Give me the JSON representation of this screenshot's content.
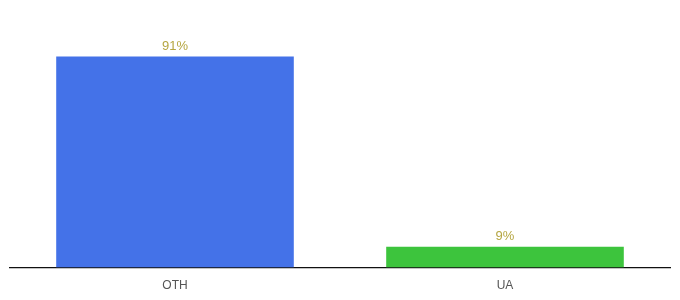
{
  "chart_data": {
    "type": "bar",
    "categories": [
      "OTH",
      "UA"
    ],
    "values": [
      91,
      9
    ],
    "value_labels": [
      "91%",
      "9%"
    ],
    "colors": [
      "#4472e8",
      "#3dc43d"
    ],
    "ylim": [
      0,
      105
    ],
    "grid": false,
    "data_labels": true,
    "tick_labels": "x"
  }
}
